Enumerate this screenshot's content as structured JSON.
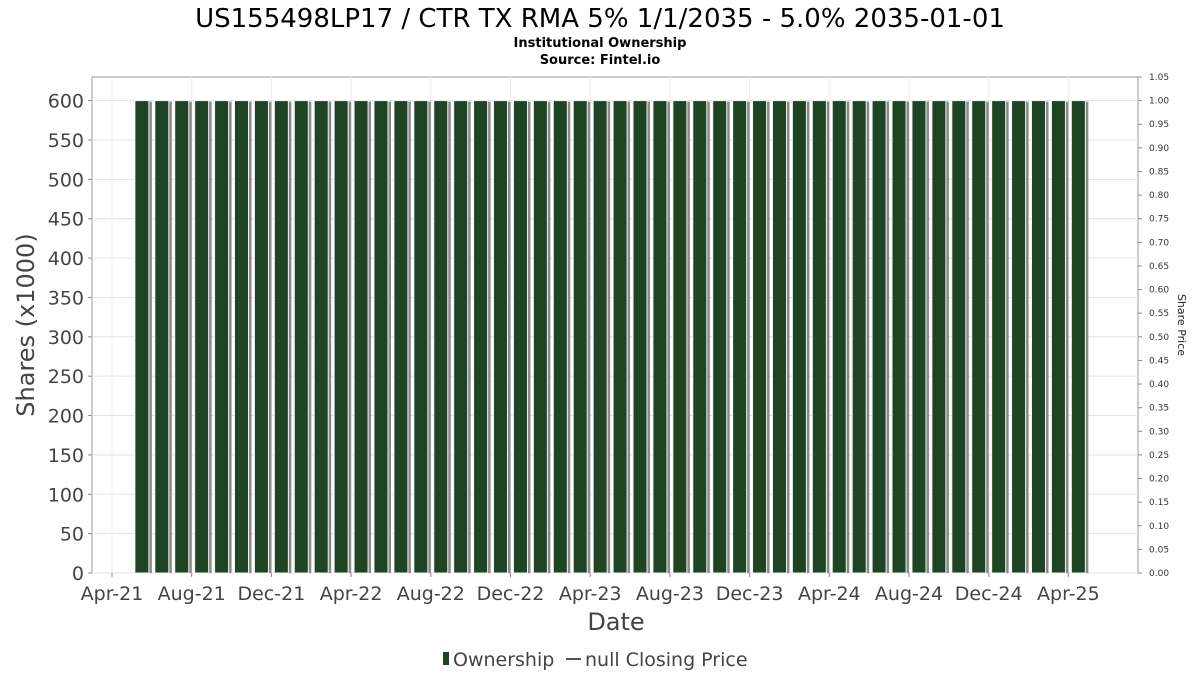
{
  "chart_data": {
    "type": "bar",
    "title": "US155498LP17 / CTR TX RMA 5% 1/1/2035 - 5.0% 2035-01-01",
    "subtitle": "Institutional Ownership",
    "source": "Source: Fintel.io",
    "xlabel": "Date",
    "ylabel": "Shares (x1000)",
    "y2label": "Share Price",
    "ylim": [
      0,
      630
    ],
    "y2lim": [
      0,
      1.05
    ],
    "yticks": [
      "0",
      "50",
      "100",
      "150",
      "200",
      "250",
      "300",
      "350",
      "400",
      "450",
      "500",
      "550",
      "600"
    ],
    "y2ticks": [
      "0.00",
      "0.05",
      "0.10",
      "0.15",
      "0.20",
      "0.25",
      "0.30",
      "0.35",
      "0.40",
      "0.45",
      "0.50",
      "0.55",
      "0.60",
      "0.65",
      "0.70",
      "0.75",
      "0.80",
      "0.85",
      "0.90",
      "0.95",
      "1.00",
      "1.05"
    ],
    "xticks": [
      "Apr-21",
      "Aug-21",
      "Dec-21",
      "Apr-22",
      "Aug-22",
      "Dec-22",
      "Apr-23",
      "Aug-23",
      "Dec-23",
      "Apr-24",
      "Aug-24",
      "Dec-24",
      "Apr-25"
    ],
    "bar_color": "#1e4424",
    "grid": true,
    "legend_position": "bottom-center",
    "series": [
      {
        "name": "Ownership",
        "values": [
          600,
          600,
          600,
          600,
          600,
          600,
          600,
          600,
          600,
          600,
          600,
          600,
          600,
          600,
          600,
          600,
          600,
          600,
          600,
          600,
          600,
          600,
          600,
          600,
          600,
          600,
          600,
          600,
          600,
          600,
          600,
          600,
          600,
          600,
          600,
          600,
          600,
          600,
          600,
          600,
          600,
          600,
          600,
          600,
          600,
          600,
          600,
          600
        ]
      },
      {
        "name": "null Closing Price",
        "values": []
      }
    ]
  }
}
